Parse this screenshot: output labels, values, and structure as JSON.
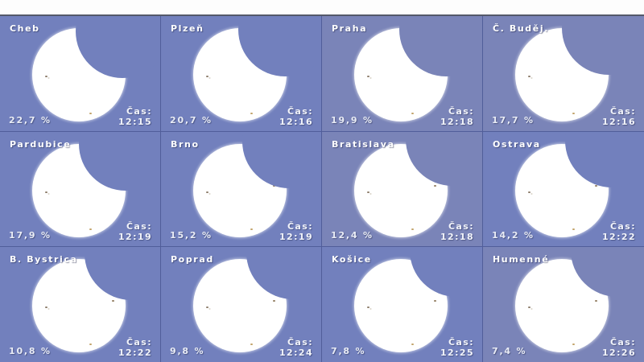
{
  "labels": {
    "time_caption": "Čas:"
  },
  "colors": {
    "panel_base": "#7280bd",
    "panel_light": "#7a84b8",
    "divider": "#515e9a",
    "top_strip": "#fdfdfd",
    "top_border": "#54596a",
    "sun": "#ffffff",
    "text": "#ffffff"
  },
  "panels": [
    {
      "city": "Cheb",
      "percent": "22,7 %",
      "time": "12:15",
      "tone": "panel_base"
    },
    {
      "city": "Plzeň",
      "percent": "20,7 %",
      "time": "12:16",
      "tone": "panel_base"
    },
    {
      "city": "Praha",
      "percent": "19,9 %",
      "time": "12:18",
      "tone": "panel_light"
    },
    {
      "city": "Č. Buděj.",
      "percent": "17,7 %",
      "time": "12:16",
      "tone": "panel_light"
    },
    {
      "city": "Pardubice",
      "percent": "17,9 %",
      "time": "12:19",
      "tone": "panel_base"
    },
    {
      "city": "Brno",
      "percent": "15,2 %",
      "time": "12:19",
      "tone": "panel_base"
    },
    {
      "city": "Bratislava",
      "percent": "12,4 %",
      "time": "12:18",
      "tone": "panel_light"
    },
    {
      "city": "Ostrava",
      "percent": "14,2 %",
      "time": "12:22",
      "tone": "panel_base"
    },
    {
      "city": "B. Bystrica",
      "percent": "10,8 %",
      "time": "12:22",
      "tone": "panel_base"
    },
    {
      "city": "Poprad",
      "percent": "9,8 %",
      "time": "12:24",
      "tone": "panel_base"
    },
    {
      "city": "Košice",
      "percent": "7,8 %",
      "time": "12:25",
      "tone": "panel_base"
    },
    {
      "city": "Humenné",
      "percent": "7,4 %",
      "time": "12:26",
      "tone": "panel_light"
    }
  ]
}
